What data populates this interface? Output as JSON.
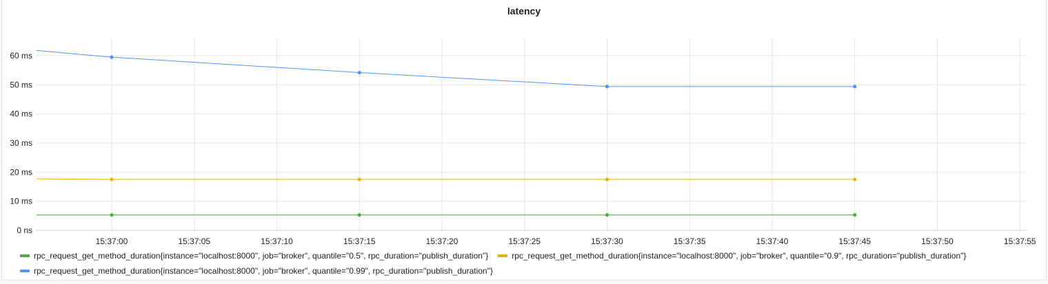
{
  "panel": {
    "title": "latency"
  },
  "chart_data": {
    "type": "line",
    "title": "latency",
    "xlabel": "",
    "ylabel": "",
    "x_ticks": [
      "15:37:00",
      "15:37:05",
      "15:37:10",
      "15:37:15",
      "15:37:20",
      "15:37:25",
      "15:37:30",
      "15:37:35",
      "15:37:40",
      "15:37:45",
      "15:37:50",
      "15:37:55"
    ],
    "y_ticks": [
      "0 ns",
      "10 ms",
      "20 ms",
      "30 ms",
      "40 ms",
      "50 ms",
      "60 ms"
    ],
    "ylim": [
      0,
      65
    ],
    "grid": true,
    "legend_position": "bottom",
    "x_unit": "seconds after 15:37:00",
    "series": [
      {
        "name": "rpc_request_get_method_duration{instance=\"localhost:8000\", job=\"broker\", quantile=\"0.5\", rpc_duration=\"publish_duration\"}",
        "color": "#56a64b",
        "x": [
          -9,
          0,
          15,
          30,
          45
        ],
        "y": [
          5.3,
          5.3,
          5.3,
          5.3,
          5.3
        ]
      },
      {
        "name": "rpc_request_get_method_duration{instance=\"localhost:8000\", job=\"broker\", quantile=\"0.9\", rpc_duration=\"publish_duration\"}",
        "color": "#e0b400",
        "x": [
          -9,
          0,
          15,
          30,
          45
        ],
        "y": [
          17.7,
          17.5,
          17.5,
          17.5,
          17.5
        ]
      },
      {
        "name": "rpc_request_get_method_duration{instance=\"localhost:8000\", job=\"broker\", quantile=\"0.99\", rpc_duration=\"publish_duration\"}",
        "color": "#5794f2",
        "x": [
          -9,
          0,
          15,
          30,
          45
        ],
        "y": [
          61.8,
          59.5,
          54.2,
          49.4,
          49.4
        ]
      }
    ]
  },
  "legend": {
    "rows": [
      [
        0,
        1
      ],
      [
        2
      ]
    ]
  }
}
